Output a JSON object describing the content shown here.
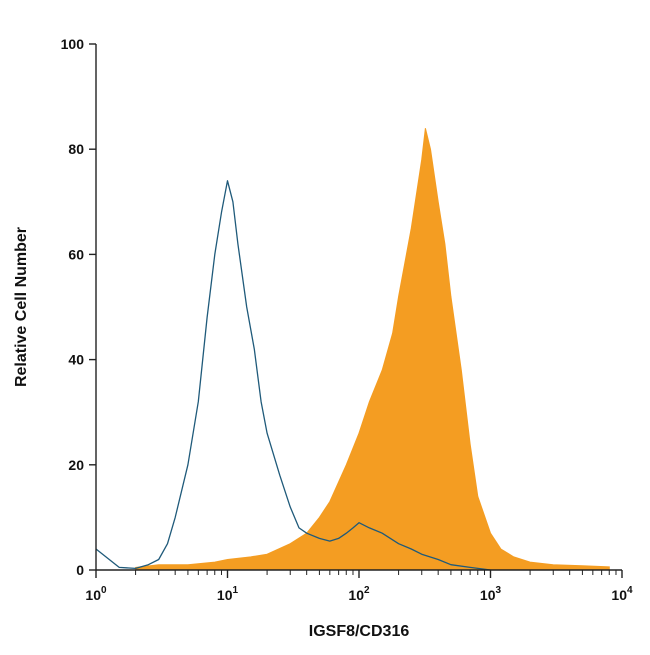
{
  "chart_data": {
    "type": "area",
    "title": "",
    "xlabel": "IGSF8/CD316",
    "ylabel": "Relative Cell Number",
    "x_scale": "log",
    "xlim": [
      1,
      10000
    ],
    "ylim": [
      0,
      100
    ],
    "grid": false,
    "legend": "none",
    "x_ticks": [
      {
        "value": 1,
        "base": "10",
        "exp": "0"
      },
      {
        "value": 10,
        "base": "10",
        "exp": "1"
      },
      {
        "value": 100,
        "base": "10",
        "exp": "2"
      },
      {
        "value": 1000,
        "base": "10",
        "exp": "3"
      },
      {
        "value": 10000,
        "base": "10",
        "exp": "4"
      }
    ],
    "y_ticks": [
      {
        "value": 0,
        "label": "0"
      },
      {
        "value": 20,
        "label": "20"
      },
      {
        "value": 40,
        "label": "40"
      },
      {
        "value": 60,
        "label": "60"
      },
      {
        "value": 80,
        "label": "80"
      },
      {
        "value": 100,
        "label": "100"
      }
    ],
    "series": [
      {
        "style": "outline",
        "color": "#1f5a7a",
        "x": [
          1,
          1.5,
          2,
          2.5,
          3,
          3.5,
          4,
          5,
          6,
          7,
          8,
          9,
          10,
          11,
          12,
          14,
          16,
          18,
          20,
          25,
          30,
          35,
          40,
          50,
          60,
          70,
          80,
          90,
          100,
          120,
          150,
          200,
          250,
          300,
          400,
          500,
          700,
          1000
        ],
        "y": [
          4,
          0.5,
          0.3,
          1,
          2,
          5,
          10,
          20,
          32,
          48,
          60,
          68,
          74,
          70,
          62,
          50,
          42,
          32,
          26,
          18,
          12,
          8,
          7,
          6,
          5.5,
          6,
          7,
          8,
          9,
          8,
          7,
          5,
          4,
          3,
          2,
          1,
          0.5,
          0
        ]
      },
      {
        "style": "filled",
        "color": "#f49d22",
        "x": [
          2,
          3,
          5,
          8,
          10,
          15,
          20,
          30,
          40,
          50,
          60,
          80,
          100,
          120,
          150,
          180,
          200,
          250,
          300,
          320,
          350,
          400,
          450,
          500,
          600,
          700,
          800,
          1000,
          1200,
          1500,
          2000,
          3000,
          5000,
          8000
        ],
        "y": [
          0.5,
          1,
          1,
          1.5,
          2,
          2.5,
          3,
          5,
          7,
          10,
          13,
          20,
          26,
          32,
          38,
          45,
          52,
          65,
          78,
          84,
          80,
          70,
          62,
          52,
          38,
          24,
          14,
          7,
          4,
          2.5,
          1.5,
          1,
          0.8,
          0.6
        ]
      }
    ]
  }
}
